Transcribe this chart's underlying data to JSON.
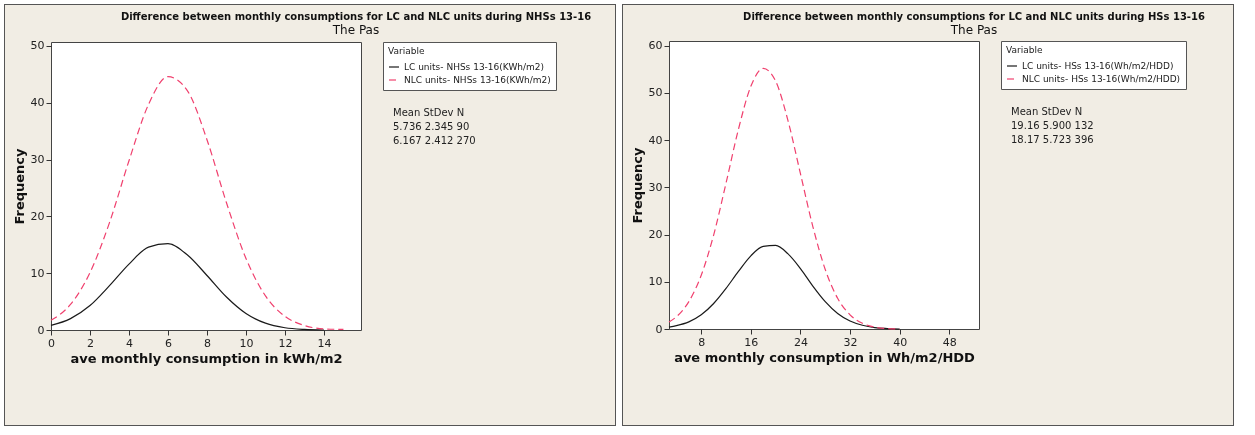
{
  "chart_data": [
    {
      "type": "line",
      "title": "Difference between monthly consumptions for LC and NLC units during NHSs 13-16",
      "subtitle": "The Pas",
      "xlabel": "ave monthly consumption in kWh/m2",
      "ylabel": "Frequency",
      "legend_title": "Variable",
      "legend": "right",
      "marker": "none",
      "grid": false,
      "x": [
        0,
        1,
        2,
        3,
        4,
        5,
        6,
        7,
        8,
        9,
        10,
        11,
        12,
        13,
        14,
        15
      ],
      "series": [
        {
          "name": "LC units- NHSs 13-16(KWh/m2)",
          "color": "#1a1a1a",
          "line_style": "solid",
          "values": [
            0.8,
            2.0,
            4.3,
            7.8,
            11.6,
            14.6,
            15.2,
            13.2,
            9.6,
            5.8,
            2.9,
            1.2,
            0.4,
            0.1,
            0.0,
            null
          ]
        },
        {
          "name": "NLC units- NHSs 13-16(KWh/m2)",
          "color": "#f0406e",
          "line_style": "dashed",
          "values": [
            1.7,
            4.5,
            10.1,
            18.9,
            29.8,
            39.7,
            44.6,
            42.1,
            33.5,
            22.4,
            12.6,
            6.0,
            2.4,
            0.8,
            0.2,
            0.1
          ]
        }
      ],
      "xlim": [
        0,
        15.9
      ],
      "xticks": [
        0,
        2,
        4,
        6,
        8,
        10,
        12,
        14
      ],
      "ylim": [
        0,
        50.7
      ],
      "yticks": [
        0,
        10,
        20,
        30,
        40,
        50
      ],
      "annotations": [
        "Mean  StDev    N",
        "5.736  2.345    90",
        "6.167  2.412  270"
      ]
    },
    {
      "type": "line",
      "title": "Difference between monthly consumptions for LC and NLC units during HSs 13-16",
      "subtitle": "The Pas",
      "xlabel": "ave monthly consumption in Wh/m2/HDD",
      "ylabel": "Frequency",
      "legend_title": "Variable",
      "legend": "right",
      "marker": "none",
      "grid": false,
      "x": [
        2.8,
        4,
        6,
        8,
        10,
        12,
        14,
        16,
        18,
        20,
        22,
        24,
        26,
        28,
        30,
        32,
        34,
        36,
        38,
        40
      ],
      "series": [
        {
          "name": "LC units- HSs 13-16(Wh/m2/HDD)",
          "color": "#1a1a1a",
          "line_style": "solid",
          "values": [
            0.4,
            0.7,
            1.5,
            3.0,
            5.4,
            8.6,
            12.2,
            15.5,
            17.5,
            17.7,
            15.9,
            12.8,
            9.1,
            5.8,
            3.3,
            1.7,
            0.8,
            0.3,
            0.1,
            0.0
          ]
        },
        {
          "name": "NLC units- HSs 13-16(Wh/m2/HDD)",
          "color": "#f0406e",
          "line_style": "dashed",
          "values": [
            1.5,
            2.6,
            5.8,
            11.4,
            19.9,
            30.9,
            42.3,
            51.4,
            55.2,
            52.5,
            44.1,
            32.9,
            21.7,
            12.6,
            6.5,
            3.0,
            1.2,
            0.4,
            0.1,
            0.0
          ]
        }
      ],
      "xlim": [
        2.8,
        52.8
      ],
      "xticks": [
        8,
        16,
        24,
        32,
        40,
        48
      ],
      "ylim": [
        0,
        61
      ],
      "yticks": [
        0,
        10,
        20,
        30,
        40,
        50,
        60
      ],
      "annotations": [
        "Mean  StDev    N",
        "19.16  5.900  132",
        "18.17  5.723  396"
      ]
    }
  ]
}
